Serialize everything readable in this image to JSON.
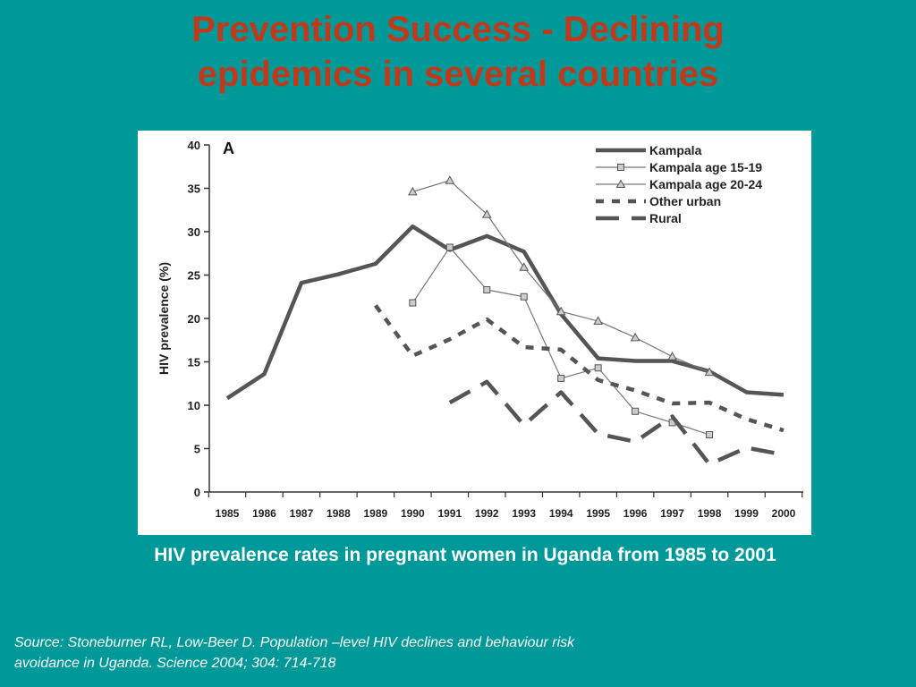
{
  "slide": {
    "title_line1": "Prevention Success - Declining",
    "title_line2": "epidemics in several countries",
    "caption": "HIV prevalence rates in pregnant women in Uganda from 1985 to 2001",
    "source_line1": "Source:  Stoneburner RL, Low-Beer D. Population –level HIV declines and behaviour risk",
    "source_line2": "avoidance in Uganda. Science 2004; 304: 714-718",
    "background_color": "#009999",
    "title_color": "#c0391b"
  },
  "chart_data": {
    "type": "line",
    "panel_label": "A",
    "title": "",
    "xlabel": "",
    "ylabel": "HIV prevalence (%)",
    "xlim": [
      1985,
      2000
    ],
    "ylim": [
      0,
      40
    ],
    "x_ticks": [
      1985,
      1986,
      1987,
      1988,
      1989,
      1990,
      1991,
      1992,
      1993,
      1994,
      1995,
      1996,
      1997,
      1998,
      1999,
      2000
    ],
    "y_ticks": [
      0,
      5,
      10,
      15,
      20,
      25,
      30,
      35,
      40
    ],
    "grid": false,
    "legend_position": "top-right",
    "series": [
      {
        "name": "Kampala",
        "style": "thick-solid",
        "marker": "none",
        "color": "#555555",
        "points": [
          [
            1985,
            10.8
          ],
          [
            1986,
            13.6
          ],
          [
            1987,
            24.1
          ],
          [
            1988,
            25.1
          ],
          [
            1989,
            26.3
          ],
          [
            1990,
            30.6
          ],
          [
            1991,
            27.9
          ],
          [
            1992,
            29.5
          ],
          [
            1993,
            27.7
          ],
          [
            1994,
            20.5
          ],
          [
            1995,
            15.4
          ],
          [
            1996,
            15.1
          ],
          [
            1997,
            15.1
          ],
          [
            1998,
            13.9
          ],
          [
            1999,
            11.5
          ],
          [
            2000,
            11.2
          ]
        ]
      },
      {
        "name": "Kampala age 15-19",
        "style": "thin-solid",
        "marker": "square",
        "color": "#777777",
        "points": [
          [
            1990,
            21.8
          ],
          [
            1991,
            28.2
          ],
          [
            1992,
            23.3
          ],
          [
            1993,
            22.5
          ],
          [
            1994,
            13.1
          ],
          [
            1995,
            14.3
          ],
          [
            1996,
            9.3
          ],
          [
            1997,
            8.0
          ],
          [
            1998,
            6.6
          ]
        ]
      },
      {
        "name": "Kampala age 20-24",
        "style": "thin-solid",
        "marker": "triangle",
        "color": "#777777",
        "points": [
          [
            1990,
            34.6
          ],
          [
            1991,
            35.9
          ],
          [
            1992,
            32.0
          ],
          [
            1993,
            25.9
          ],
          [
            1994,
            20.8
          ],
          [
            1995,
            19.7
          ],
          [
            1996,
            17.8
          ],
          [
            1997,
            15.6
          ],
          [
            1998,
            13.8
          ]
        ]
      },
      {
        "name": "Other urban",
        "style": "short-dash",
        "marker": "none",
        "color": "#555555",
        "points": [
          [
            1989,
            21.5
          ],
          [
            1990,
            15.7
          ],
          [
            1991,
            17.6
          ],
          [
            1992,
            19.9
          ],
          [
            1993,
            16.7
          ],
          [
            1994,
            16.4
          ],
          [
            1995,
            12.9
          ],
          [
            1996,
            11.7
          ],
          [
            1997,
            10.2
          ],
          [
            1998,
            10.3
          ],
          [
            1999,
            8.4
          ],
          [
            2000,
            7.1
          ]
        ]
      },
      {
        "name": "Rural",
        "style": "long-dash",
        "marker": "none",
        "color": "#555555",
        "points": [
          [
            1991,
            10.3
          ],
          [
            1992,
            12.7
          ],
          [
            1993,
            7.7
          ],
          [
            1994,
            11.5
          ],
          [
            1995,
            6.7
          ],
          [
            1996,
            5.8
          ],
          [
            1997,
            8.7
          ],
          [
            1998,
            3.2
          ],
          [
            1999,
            5.1
          ],
          [
            2000,
            4.3
          ]
        ]
      }
    ]
  }
}
